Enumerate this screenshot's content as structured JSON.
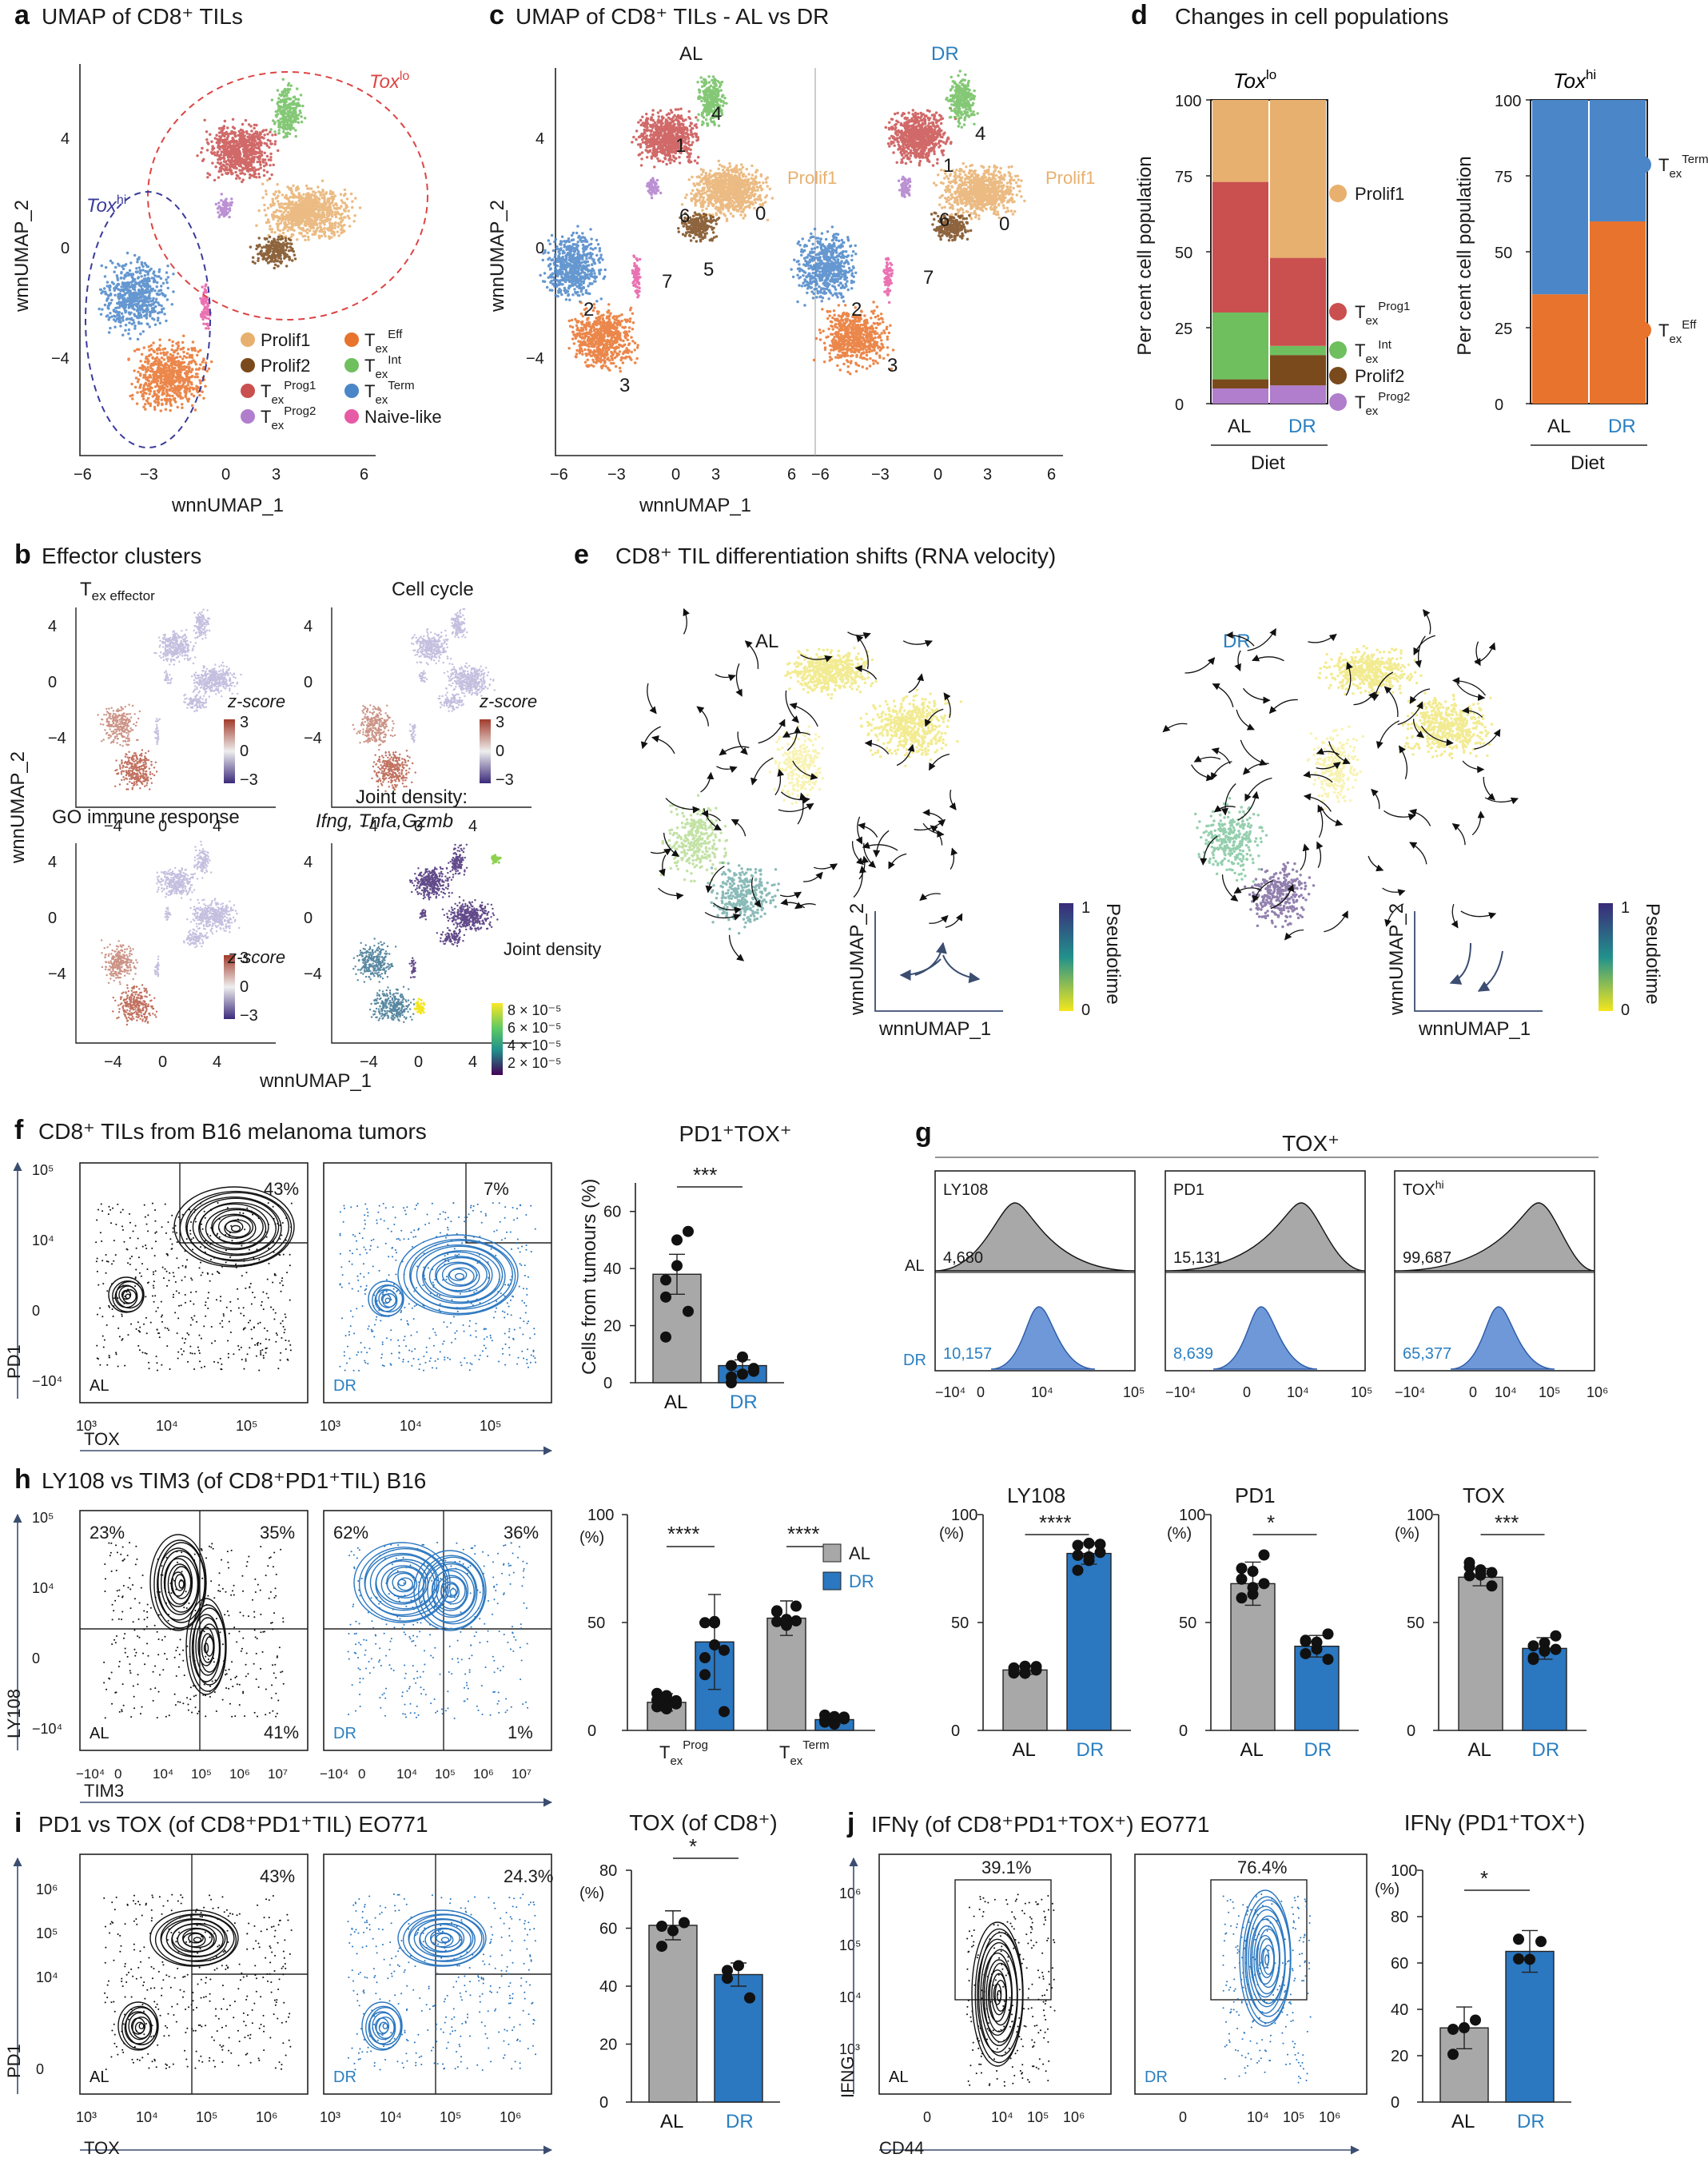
{
  "colors": {
    "AL": "#a8a8a8",
    "DR": "#2b77c0",
    "prolif1": "#e8b06e",
    "prolif2": "#7a4a1c",
    "prog1": "#c9504f",
    "prog2": "#b07ecc",
    "eff": "#e8732c",
    "int": "#6fbf5f",
    "term": "#4b86c8",
    "naive": "#e75aa5",
    "black": "#111111",
    "purple": "#3b2a7a"
  },
  "panels": {
    "a": {
      "letter": "a",
      "title": "UMAP of CD8⁺ TILs",
      "ylabel": "wnnUMAP_2",
      "xlabel": "wnnUMAP_1",
      "xticks": [
        "−6",
        "−3",
        "0",
        "3",
        "6"
      ],
      "yticks": [
        "4",
        "0",
        "−4"
      ],
      "toxlo": "Tox",
      "toxlo_sup": "lo",
      "toxhi": "Tox",
      "toxhi_sup": "hi",
      "legend": [
        {
          "name": "Prolif1"
        },
        {
          "name": "Prolif2"
        },
        {
          "name": "T",
          "sub": "ex",
          "sup": "Prog1"
        },
        {
          "name": "T",
          "sub": "ex",
          "sup": "Prog2"
        },
        {
          "name": "T",
          "sub": "ex",
          "sup": "Eff"
        },
        {
          "name": "T",
          "sub": "ex",
          "sup": "Int"
        },
        {
          "name": "T",
          "sub": "ex",
          "sup": "Term"
        },
        {
          "name": "Naive-like"
        }
      ]
    },
    "b": {
      "letter": "b",
      "title": "Effector clusters",
      "sub1": "T",
      "sub1b": "ex effector",
      "sub2": "Cell cycle",
      "sub3": "GO immune response",
      "sub4a": "Joint density:",
      "sub4b": "Ifng, Tnfa,Gzmb",
      "zscore": "z-score",
      "zticks": [
        "3",
        "0",
        "−3"
      ],
      "jd": "Joint density",
      "jdticks": [
        "8 × 10⁻⁵",
        "6 × 10⁻⁵",
        "4 × 10⁻⁵",
        "2 × 10⁻⁵"
      ],
      "ylabel": "wnnUMAP_2",
      "xlabel": "wnnUMAP_1",
      "xticks": [
        "−4",
        "0",
        "4"
      ],
      "yticks": [
        "4",
        "0",
        "−4"
      ]
    },
    "c": {
      "letter": "c",
      "title": "UMAP of CD8⁺ TILs - AL vs DR",
      "al": "AL",
      "dr": "DR",
      "ylabel": "wnnUMAP_2",
      "xlabel": "wnnUMAP_1",
      "xticks": [
        "−6",
        "−3",
        "0",
        "3",
        "6"
      ],
      "yticks": [
        "4",
        "0",
        "−4"
      ],
      "clusters": [
        "0",
        "1",
        "2",
        "3",
        "4",
        "5",
        "6",
        "7"
      ],
      "prolif1": "Prolif1"
    },
    "d": {
      "letter": "d",
      "title": "Changes in cell populations",
      "ylabel": "Per cent cell population",
      "xlabel": "Diet",
      "lo_title": "Tox",
      "lo_sup": "lo",
      "hi_title": "Tox",
      "hi_sup": "hi",
      "yticks": [
        "100",
        "75",
        "50",
        "25",
        "0"
      ],
      "cats": [
        "AL",
        "DR"
      ],
      "lo_legend": [
        "Prolif1",
        "Prolif2"
      ],
      "hi_legend": []
    },
    "e": {
      "letter": "e",
      "title": "CD8⁺ TIL differentiation shifts (RNA velocity)",
      "al": "AL",
      "dr": "DR",
      "pseudotime": "Pseudotime",
      "pt1": "1",
      "pt0": "0",
      "ylabel": "wnnUMAP_2",
      "xlabel": "wnnUMAP_1"
    },
    "f": {
      "letter": "f",
      "title": "CD8⁺ TILs from B16 melanoma tumors",
      "pct_al": "43%",
      "pct_dr": "7%",
      "al": "AL",
      "dr": "DR",
      "xlabel": "TOX",
      "ylabel": "PD1",
      "bar_title": "PD1⁺TOX⁺",
      "bar_ylabel": "Cells from tumours (%)",
      "sig": "***",
      "yticks": [
        "60",
        "40",
        "20",
        "0"
      ]
    },
    "g": {
      "letter": "g",
      "title": "TOX⁺",
      "labels": [
        "LY108",
        "PD1",
        "TOX"
      ],
      "toxhi_sup": "hi",
      "al": "AL",
      "dr": "DR",
      "al_vals": [
        "4,680",
        "15,131",
        "99,687"
      ],
      "dr_vals": [
        "10,157",
        "8,639",
        "65,377"
      ]
    },
    "h": {
      "letter": "h",
      "title": "LY108 vs TIM3 (of CD8⁺PD1⁺TIL) B16",
      "al_q": [
        "23%",
        "35%",
        "41%"
      ],
      "dr_q": [
        "62%",
        "36%",
        "1%"
      ],
      "al": "AL",
      "dr": "DR",
      "xlabel": "TIM3",
      "ylabel": "LY108",
      "pct": "(%)",
      "sig": "****",
      "yticks": [
        "100",
        "50",
        "0"
      ],
      "b1": "LY108",
      "b2": "PD1",
      "b3": "TOX",
      "s2": "*",
      "s3": "***"
    },
    "i": {
      "letter": "i",
      "title": "PD1 vs TOX (of CD8⁺PD1⁺TIL) EO771",
      "pct_al": "43%",
      "pct_dr": "24.3%",
      "al": "AL",
      "dr": "DR",
      "xlabel": "TOX",
      "ylabel": "PD1",
      "bar_title": "TOX (of CD8⁺)",
      "sig": "*",
      "yticks": [
        "80",
        "60",
        "40",
        "20",
        "0"
      ]
    },
    "j": {
      "letter": "j",
      "title": "IFNγ (of CD8⁺PD1⁺TOX⁺) EO771",
      "pct_al": "39.1%",
      "pct_dr": "76.4%",
      "al": "AL",
      "dr": "DR",
      "xlabel": "CD44",
      "ylabel": "IFNG",
      "bar_title": "IFNγ (PD1⁺TOX⁺)",
      "sig": "*",
      "yticks": [
        "100",
        "80",
        "60",
        "40",
        "20",
        "0"
      ]
    }
  },
  "chart_data": [
    {
      "type": "bar",
      "stacked": true,
      "title": "Tox lo",
      "categories": [
        "AL",
        "DR"
      ],
      "ylabel": "Per cent cell population",
      "ylim": [
        0,
        100
      ],
      "series": [
        {
          "name": "Prog2",
          "values": [
            5,
            6
          ]
        },
        {
          "name": "Prolif2",
          "values": [
            3,
            10
          ]
        },
        {
          "name": "Int",
          "values": [
            22,
            3
          ]
        },
        {
          "name": "Prog1",
          "values": [
            43,
            29
          ]
        },
        {
          "name": "Prolif1",
          "values": [
            27,
            52
          ]
        }
      ]
    },
    {
      "type": "bar",
      "stacked": true,
      "title": "Tox hi",
      "categories": [
        "AL",
        "DR"
      ],
      "ylabel": "Per cent cell population",
      "ylim": [
        0,
        100
      ],
      "series": [
        {
          "name": "Eff",
          "values": [
            36,
            60
          ]
        },
        {
          "name": "Term",
          "values": [
            64,
            40
          ]
        }
      ]
    },
    {
      "type": "bar",
      "title": "PD1+TOX+",
      "categories": [
        "AL",
        "DR"
      ],
      "values": [
        38,
        6
      ],
      "errors": [
        7,
        2
      ],
      "ylim": [
        0,
        70
      ],
      "points": [
        [
          30,
          50,
          53,
          36,
          41,
          25,
          16
        ],
        [
          2,
          9,
          5,
          6,
          3,
          4,
          0
        ]
      ]
    },
    {
      "type": "bar",
      "title": "Tex Prog / Tex Term",
      "groups": [
        "Prog",
        "Term"
      ],
      "series": [
        {
          "name": "AL",
          "values": [
            13,
            52
          ],
          "errors": [
            4,
            8
          ]
        },
        {
          "name": "DR",
          "values": [
            41,
            5
          ],
          "errors": [
            22,
            2
          ]
        }
      ],
      "ylim": [
        0,
        100
      ]
    },
    {
      "type": "bar",
      "title": "LY108",
      "categories": [
        "AL",
        "DR"
      ],
      "values": [
        28,
        82
      ],
      "errors": [
        2,
        5
      ],
      "ylim": [
        0,
        100
      ]
    },
    {
      "type": "bar",
      "title": "PD1",
      "categories": [
        "AL",
        "DR"
      ],
      "values": [
        68,
        39
      ],
      "errors": [
        10,
        5
      ],
      "ylim": [
        0,
        100
      ]
    },
    {
      "type": "bar",
      "title": "TOX",
      "categories": [
        "AL",
        "DR"
      ],
      "values": [
        71,
        38
      ],
      "errors": [
        4,
        5
      ],
      "ylim": [
        0,
        100
      ]
    },
    {
      "type": "bar",
      "title": "TOX (of CD8+)",
      "categories": [
        "AL",
        "DR"
      ],
      "values": [
        61,
        44
      ],
      "errors": [
        5,
        4
      ],
      "ylim": [
        0,
        80
      ]
    },
    {
      "type": "bar",
      "title": "IFNg (PD1+TOX+)",
      "categories": [
        "AL",
        "DR"
      ],
      "values": [
        32,
        65
      ],
      "errors": [
        9,
        9
      ],
      "ylim": [
        0,
        100
      ]
    }
  ]
}
